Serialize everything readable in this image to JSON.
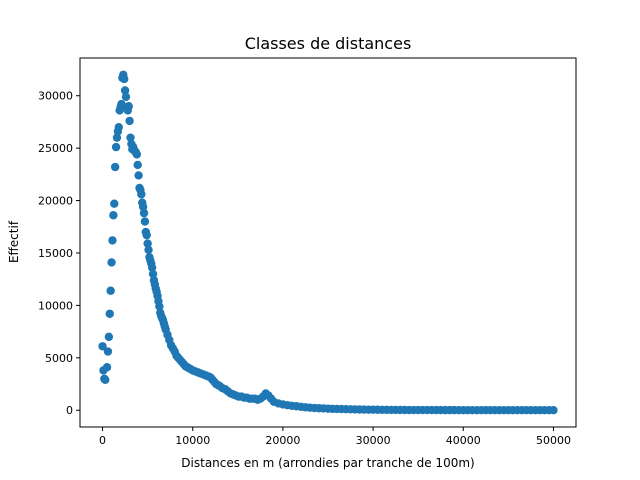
{
  "chart_data": {
    "type": "scatter",
    "title": "Classes de distances",
    "xlabel": "Distances en m (arrondies par tranche de 100m)",
    "ylabel": "Effectif",
    "xlim": [
      -2500,
      52500
    ],
    "ylim": [
      -1600,
      33600
    ],
    "xticks": [
      0,
      10000,
      20000,
      30000,
      40000,
      50000
    ],
    "yticks": [
      0,
      5000,
      10000,
      15000,
      20000,
      25000,
      30000
    ],
    "grid": false,
    "series": [
      {
        "color": "#1f77b4",
        "points": [
          [
            0,
            6100
          ],
          [
            100,
            3800
          ],
          [
            200,
            3000
          ],
          [
            300,
            2900
          ],
          [
            500,
            4100
          ],
          [
            600,
            5600
          ],
          [
            700,
            7000
          ],
          [
            800,
            9200
          ],
          [
            900,
            11400
          ],
          [
            1000,
            14100
          ],
          [
            1100,
            16200
          ],
          [
            1200,
            18600
          ],
          [
            1300,
            19700
          ],
          [
            1400,
            23200
          ],
          [
            1500,
            25100
          ],
          [
            1600,
            26000
          ],
          [
            1700,
            26600
          ],
          [
            1800,
            27000
          ],
          [
            1900,
            28600
          ],
          [
            2000,
            28900
          ],
          [
            2100,
            29200
          ],
          [
            2200,
            31700
          ],
          [
            2300,
            32000
          ],
          [
            2400,
            31600
          ],
          [
            2500,
            30500
          ],
          [
            2600,
            29900
          ],
          [
            2700,
            28900
          ],
          [
            2800,
            28600
          ],
          [
            2900,
            29000
          ],
          [
            3000,
            27600
          ],
          [
            3100,
            26000
          ],
          [
            3200,
            25400
          ],
          [
            3300,
            24900
          ],
          [
            3400,
            25100
          ],
          [
            3500,
            24800
          ],
          [
            3600,
            24700
          ],
          [
            3700,
            24600
          ],
          [
            3800,
            24400
          ],
          [
            3900,
            23400
          ],
          [
            4000,
            22400
          ],
          [
            4100,
            21200
          ],
          [
            4200,
            21000
          ],
          [
            4300,
            20600
          ],
          [
            4400,
            19800
          ],
          [
            4500,
            19400
          ],
          [
            4600,
            18800
          ],
          [
            4700,
            18000
          ],
          [
            4800,
            17000
          ],
          [
            4900,
            16700
          ],
          [
            5000,
            15900
          ],
          [
            5100,
            15300
          ],
          [
            5200,
            14600
          ],
          [
            5300,
            14300
          ],
          [
            5400,
            14000
          ],
          [
            5500,
            13600
          ],
          [
            5600,
            13000
          ],
          [
            5700,
            12400
          ],
          [
            5800,
            12000
          ],
          [
            5900,
            11600
          ],
          [
            6000,
            11300
          ],
          [
            6100,
            10900
          ],
          [
            6200,
            10400
          ],
          [
            6300,
            9900
          ],
          [
            6400,
            9300
          ],
          [
            6500,
            9000
          ],
          [
            6600,
            8800
          ],
          [
            6700,
            8600
          ],
          [
            6800,
            8300
          ],
          [
            6900,
            8000
          ],
          [
            7000,
            7700
          ],
          [
            7200,
            7200
          ],
          [
            7400,
            6700
          ],
          [
            7600,
            6200
          ],
          [
            7800,
            5900
          ],
          [
            8000,
            5600
          ],
          [
            8200,
            5200
          ],
          [
            8400,
            5000
          ],
          [
            8600,
            4800
          ],
          [
            8800,
            4600
          ],
          [
            9000,
            4400
          ],
          [
            9200,
            4200
          ],
          [
            9400,
            4100
          ],
          [
            9600,
            4000
          ],
          [
            9800,
            3900
          ],
          [
            10000,
            3800
          ],
          [
            10300,
            3700
          ],
          [
            10600,
            3600
          ],
          [
            10900,
            3500
          ],
          [
            11200,
            3400
          ],
          [
            11500,
            3300
          ],
          [
            11800,
            3200
          ],
          [
            12000,
            3100
          ],
          [
            12200,
            2900
          ],
          [
            12400,
            2700
          ],
          [
            12600,
            2500
          ],
          [
            12800,
            2400
          ],
          [
            13000,
            2300
          ],
          [
            13300,
            2100
          ],
          [
            13600,
            2000
          ],
          [
            13900,
            1800
          ],
          [
            14200,
            1600
          ],
          [
            14500,
            1500
          ],
          [
            14800,
            1400
          ],
          [
            15100,
            1300
          ],
          [
            15400,
            1300
          ],
          [
            15700,
            1200
          ],
          [
            16000,
            1200
          ],
          [
            16300,
            1100
          ],
          [
            16600,
            1100
          ],
          [
            16900,
            1100
          ],
          [
            17200,
            1000
          ],
          [
            17500,
            1100
          ],
          [
            17800,
            1300
          ],
          [
            18100,
            1600
          ],
          [
            18400,
            1400
          ],
          [
            18700,
            1100
          ],
          [
            19000,
            800
          ],
          [
            19500,
            650
          ],
          [
            20000,
            550
          ],
          [
            20500,
            480
          ],
          [
            21000,
            420
          ],
          [
            21500,
            380
          ],
          [
            22000,
            330
          ],
          [
            22500,
            280
          ],
          [
            23000,
            240
          ],
          [
            23500,
            210
          ],
          [
            24000,
            190
          ],
          [
            24500,
            170
          ],
          [
            25000,
            150
          ],
          [
            25500,
            130
          ],
          [
            26000,
            120
          ],
          [
            26500,
            110
          ],
          [
            27000,
            100
          ],
          [
            27500,
            90
          ],
          [
            28000,
            80
          ],
          [
            28500,
            70
          ],
          [
            29000,
            60
          ],
          [
            29500,
            55
          ],
          [
            30000,
            50
          ],
          [
            30500,
            45
          ],
          [
            31000,
            40
          ],
          [
            31500,
            35
          ],
          [
            32000,
            30
          ],
          [
            32500,
            28
          ],
          [
            33000,
            25
          ],
          [
            33500,
            22
          ],
          [
            34000,
            20
          ],
          [
            34500,
            18
          ],
          [
            35000,
            16
          ],
          [
            35500,
            15
          ],
          [
            36000,
            14
          ],
          [
            36500,
            13
          ],
          [
            37000,
            12
          ],
          [
            37500,
            11
          ],
          [
            38000,
            10
          ],
          [
            38500,
            9
          ],
          [
            39000,
            9
          ],
          [
            39500,
            8
          ],
          [
            40000,
            8
          ],
          [
            40500,
            7
          ],
          [
            41000,
            7
          ],
          [
            41500,
            6
          ],
          [
            42000,
            6
          ],
          [
            42500,
            6
          ],
          [
            43000,
            5
          ],
          [
            43500,
            5
          ],
          [
            44000,
            5
          ],
          [
            44500,
            5
          ],
          [
            45000,
            4
          ],
          [
            45500,
            4
          ],
          [
            46000,
            4
          ],
          [
            46500,
            4
          ],
          [
            47000,
            3
          ],
          [
            47500,
            3
          ],
          [
            48000,
            3
          ],
          [
            48500,
            3
          ],
          [
            49000,
            3
          ],
          [
            49500,
            2
          ],
          [
            50000,
            2
          ]
        ]
      }
    ]
  }
}
